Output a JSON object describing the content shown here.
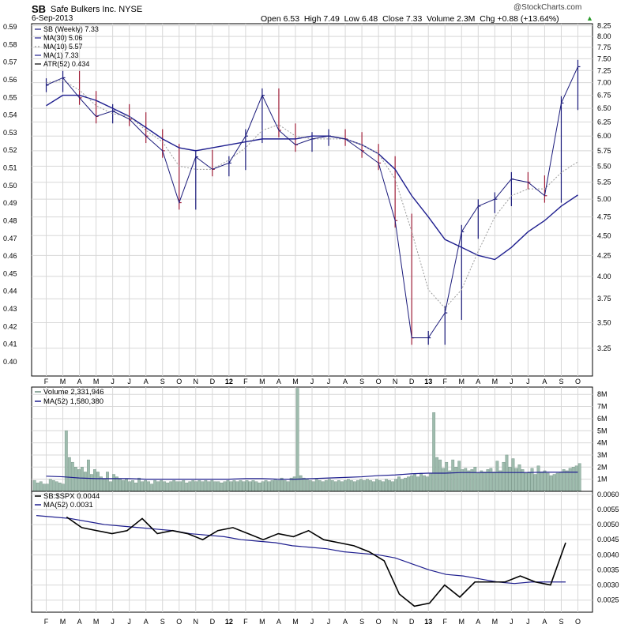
{
  "header": {
    "symbol": "SB",
    "company": "Safe Bulkers Inc. NYSE",
    "date": "6-Sep-2013",
    "quote": "Open 6.53  High 7.49  Low 6.48  Close 7.33  Volume 2.3M  Chg +0.88 (+13.64%)",
    "quote_arrow": "▲",
    "watermark": "@StockCharts.com"
  },
  "colors": {
    "frame": "#000000",
    "grid": "#d7d7d7",
    "price_up": "#1a1a7a",
    "price_down": "#a0203a",
    "ma30": "#1f1f8f",
    "ma10": "#999999",
    "volume_bar": "#9fbcae",
    "volume_bar_edge": "#6e8f80",
    "ratio_line": "#000000",
    "ratio_ma": "#1f1f8f",
    "arrow_up": "#2a9a2a"
  },
  "chart_data": [
    {
      "type": "line",
      "panel": "price",
      "x": [
        "F",
        "M",
        "A",
        "M",
        "J",
        "J",
        "A",
        "S",
        "O",
        "N",
        "D",
        "12",
        "F",
        "M",
        "A",
        "M",
        "J",
        "J",
        "A",
        "S",
        "O",
        "N",
        "D",
        "13",
        "F",
        "M",
        "A",
        "M",
        "J",
        "J",
        "A",
        "S",
        "O"
      ],
      "legend": [
        "SB (Weekly) 7.33",
        "MA(30) 5.06",
        "MA(10) 5.57",
        "MA(1) 7.33",
        "ATR(52) 0.434"
      ],
      "y_left_ticks": [
        "0.59",
        "0.58",
        "0.57",
        "0.56",
        "0.55",
        "0.54",
        "0.53",
        "0.52",
        "0.51",
        "0.50",
        "0.49",
        "0.48",
        "0.47",
        "0.46",
        "0.45",
        "0.44",
        "0.43",
        "0.42",
        "0.41",
        "0.40"
      ],
      "y_right_ticks": [
        "8.25",
        "8.00",
        "7.75",
        "7.50",
        "7.25",
        "7.00",
        "6.75",
        "6.50",
        "6.25",
        "6.00",
        "5.75",
        "5.50",
        "5.25",
        "5.00",
        "4.75",
        "4.50",
        "4.25",
        "4.00",
        "3.75",
        "3.50",
        "3.25"
      ],
      "ylim": [
        3.0,
        8.3
      ],
      "scale": "log",
      "series": [
        {
          "name": "SB (Weekly)",
          "values": [
            6.95,
            7.1,
            6.7,
            6.35,
            6.45,
            6.3,
            6.0,
            5.75,
            4.95,
            5.65,
            5.45,
            5.55,
            6.0,
            6.75,
            6.1,
            5.85,
            5.95,
            6.0,
            5.95,
            5.75,
            5.55,
            4.7,
            3.35,
            3.35,
            3.6,
            4.55,
            4.9,
            5.0,
            5.3,
            5.25,
            5.05,
            6.6,
            7.33
          ]
        },
        {
          "name": "MA(30)",
          "values": [
            6.55,
            6.75,
            6.75,
            6.65,
            6.5,
            6.35,
            6.15,
            5.95,
            5.8,
            5.75,
            5.8,
            5.85,
            5.9,
            5.95,
            5.95,
            5.95,
            6.0,
            6.0,
            5.95,
            5.85,
            5.7,
            5.45,
            5.05,
            4.75,
            4.45,
            4.35,
            4.25,
            4.2,
            4.35,
            4.55,
            4.7,
            4.9,
            5.06
          ]
        },
        {
          "name": "MA(10)",
          "values": [
            7.0,
            7.05,
            6.85,
            6.55,
            6.4,
            6.35,
            6.1,
            5.9,
            5.5,
            5.45,
            5.45,
            5.6,
            5.8,
            6.1,
            6.2,
            6.0,
            5.95,
            5.95,
            5.95,
            5.85,
            5.7,
            5.3,
            4.55,
            3.85,
            3.65,
            3.85,
            4.3,
            4.75,
            5.05,
            5.15,
            5.15,
            5.4,
            5.57
          ]
        }
      ]
    },
    {
      "type": "bar",
      "panel": "volume",
      "legend": [
        "Volume 2,331,946",
        "MA(52) 1,580,380"
      ],
      "y_ticks": [
        "8M",
        "7M",
        "6M",
        "5M",
        "4M",
        "3M",
        "2M",
        "1M"
      ],
      "ylim": [
        0,
        8.6
      ],
      "unit": "M",
      "series": [
        {
          "name": "Volume",
          "values": [
            0.9,
            0.7,
            0.8,
            0.6,
            0.6,
            1.0,
            0.9,
            0.8,
            0.7,
            0.6,
            5.0,
            2.8,
            2.4,
            2.0,
            1.8,
            2.0,
            1.6,
            2.6,
            1.4,
            1.8,
            1.6,
            1.2,
            1.0,
            1.6,
            0.8,
            1.4,
            1.2,
            1.0,
            0.9,
            1.0,
            0.8,
            0.9,
            0.7,
            1.1,
            0.8,
            0.9,
            0.8,
            0.6,
            0.9,
            0.8,
            0.9,
            0.8,
            0.7,
            0.8,
            0.9,
            0.8,
            0.8,
            0.9,
            0.7,
            0.8,
            0.9,
            0.8,
            0.9,
            0.8,
            0.9,
            0.8,
            0.9,
            0.8,
            0.8,
            0.7,
            0.8,
            0.9,
            0.8,
            0.9,
            0.8,
            0.9,
            0.8,
            0.9,
            0.8,
            0.9,
            0.8,
            0.7,
            0.8,
            0.9,
            0.8,
            0.9,
            1.0,
            0.9,
            1.1,
            0.9,
            0.8,
            1.1,
            1.2,
            8.5,
            1.3,
            1.1,
            1.0,
            0.9,
            0.8,
            1.0,
            0.9,
            0.8,
            0.9,
            1.0,
            0.9,
            0.8,
            0.9,
            0.8,
            0.9,
            1.0,
            0.9,
            0.8,
            0.9,
            1.0,
            0.9,
            1.0,
            0.9,
            0.8,
            1.0,
            0.9,
            0.8,
            1.0,
            0.9,
            0.8,
            1.0,
            1.2,
            1.0,
            1.1,
            1.2,
            1.3,
            1.4,
            1.2,
            1.5,
            1.3,
            1.2,
            1.5,
            6.5,
            2.8,
            2.6,
            1.9,
            2.4,
            1.7,
            2.6,
            2.0,
            2.5,
            1.8,
            1.9,
            1.7,
            1.8,
            2.0,
            1.5,
            1.7,
            1.6,
            1.8,
            1.9,
            1.6,
            2.5,
            1.7,
            2.4,
            3.0,
            2.0,
            2.7,
            1.9,
            2.2,
            1.8,
            1.5,
            1.6,
            1.9,
            1.4,
            2.1,
            1.6,
            1.7,
            1.5,
            1.3,
            1.4,
            1.5,
            1.6,
            1.8,
            1.7,
            1.9,
            2.0,
            2.1,
            2.3
          ]
        },
        {
          "name": "MA(52)",
          "values": [
            1.25,
            1.2,
            1.1,
            1.05,
            1.05,
            1.05,
            1.0,
            1.0,
            1.0,
            1.0,
            1.0,
            1.0,
            1.05,
            1.05,
            1.0,
            1.0,
            1.05,
            1.1,
            1.15,
            1.2,
            1.3,
            1.35,
            1.45,
            1.5,
            1.5,
            1.55,
            1.55,
            1.55,
            1.55,
            1.55,
            1.58,
            1.58,
            1.58
          ]
        }
      ]
    },
    {
      "type": "line",
      "panel": "ratio",
      "legend": [
        "SB:$SPX 0.0044",
        "MA(52) 0.0031"
      ],
      "y_ticks": [
        "0.0060",
        "0.0055",
        "0.0050",
        "0.0045",
        "0.0040",
        "0.0035",
        "0.0030",
        "0.0025"
      ],
      "ylim": [
        0.0021,
        0.0061
      ],
      "series": [
        {
          "name": "SB:$SPX",
          "values": [
            null,
            null,
            0.00525,
            0.0049,
            0.0048,
            0.0047,
            0.0048,
            0.0052,
            0.0047,
            0.0048,
            0.0047,
            0.0045,
            0.0048,
            0.0049,
            0.0047,
            0.0045,
            0.0047,
            0.0046,
            0.0048,
            0.0045,
            0.0044,
            0.0043,
            0.0041,
            0.0038,
            0.0027,
            0.0023,
            0.0024,
            0.003,
            0.0026,
            0.0031,
            0.0031,
            0.0031,
            0.0033,
            0.0031,
            0.003,
            0.0044
          ]
        },
        {
          "name": "MA(52)",
          "values": [
            0.0053,
            0.00525,
            0.0052,
            0.0051,
            0.005,
            0.00495,
            0.0049,
            0.00485,
            0.0048,
            0.0047,
            0.00465,
            0.0046,
            0.0045,
            0.00445,
            0.0044,
            0.0043,
            0.00425,
            0.0042,
            0.0041,
            0.00405,
            0.004,
            0.0039,
            0.0037,
            0.0035,
            0.00335,
            0.0033,
            0.0032,
            0.0031,
            0.00305,
            0.0031,
            0.0031,
            0.0031
          ]
        }
      ]
    }
  ]
}
